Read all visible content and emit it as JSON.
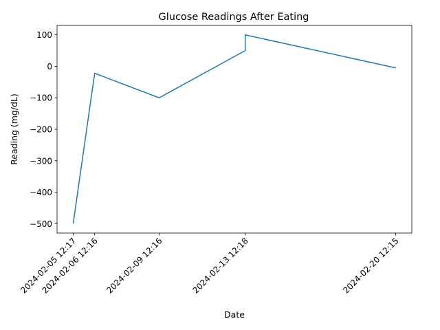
{
  "chart_data": {
    "type": "line",
    "title": "Glucose Readings After Eating",
    "xlabel": "Date",
    "ylabel": "Reading (mg/dL)",
    "x_ticks": [
      "2024-02-05 12:17",
      "2024-02-06 12:16",
      "2024-02-09 12:16",
      "2024-02-13 12:18",
      "2024-02-20 12:15"
    ],
    "y_ticks": [
      100,
      0,
      -100,
      -200,
      -300,
      -400,
      -500
    ],
    "ylim": [
      -530,
      130
    ],
    "grid": false,
    "series": [
      {
        "color": "#1f77b4",
        "points": [
          {
            "x": "2024-02-05 12:17",
            "y": -500
          },
          {
            "x": "2024-02-06 12:16",
            "y": -22
          },
          {
            "x": "2024-02-09 12:16",
            "y": -100
          },
          {
            "x": "2024-02-13 12:18",
            "y": 50
          },
          {
            "x": "2024-02-13 12:18",
            "y": 100
          },
          {
            "x": "2024-02-20 12:15",
            "y": -5
          }
        ]
      }
    ]
  }
}
